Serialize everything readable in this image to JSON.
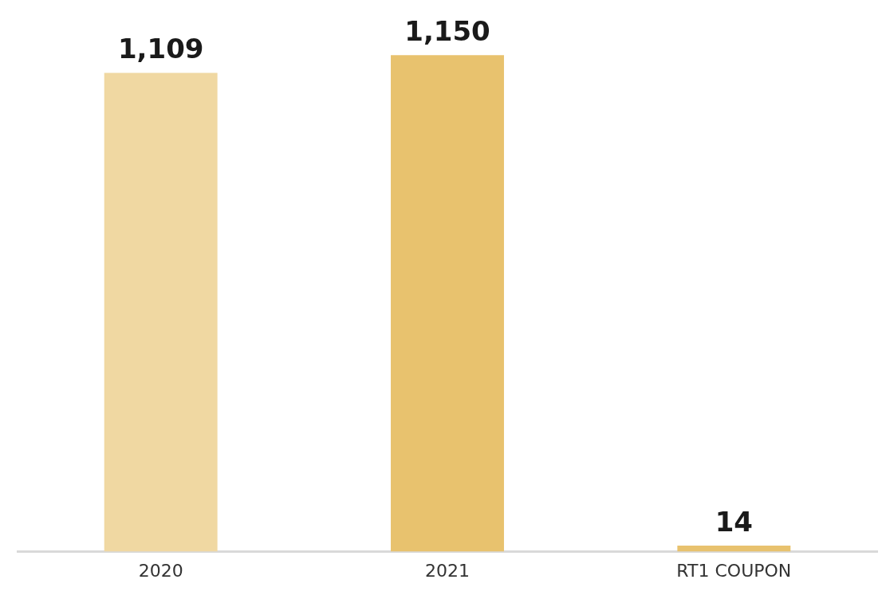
{
  "chart_data": {
    "type": "bar",
    "categories": [
      "2020",
      "2021",
      "RT1 COUPON"
    ],
    "values": [
      1109,
      1150,
      14
    ],
    "colors": [
      "#f0d8a2",
      "#e8c26e",
      "#e8c26e"
    ],
    "value_labels": [
      "1,109",
      "1,150",
      "14"
    ],
    "grid": false,
    "legend": false
  }
}
